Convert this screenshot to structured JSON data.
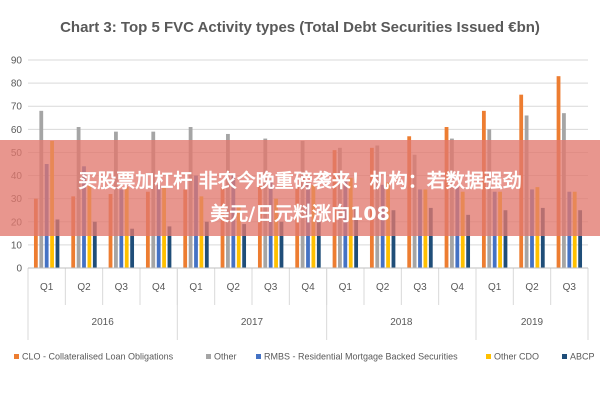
{
  "chart_data": {
    "type": "bar",
    "title": "Chart 3: Top 5 FVC Activity types (Total Debt Securities Issued €bn)",
    "xlabel": "",
    "ylabel": "",
    "ylim": [
      0,
      90
    ],
    "yticks": [
      0,
      10,
      20,
      30,
      40,
      50,
      60,
      70,
      80,
      90
    ],
    "grid": true,
    "legend_position": "bottom",
    "categories": [
      "Q1",
      "Q2",
      "Q3",
      "Q4",
      "Q1",
      "Q2",
      "Q3",
      "Q4",
      "Q1",
      "Q2",
      "Q3",
      "Q4",
      "Q1",
      "Q2",
      "Q3"
    ],
    "groups": [
      {
        "label": "2016",
        "count": 4
      },
      {
        "label": "2017",
        "count": 4
      },
      {
        "label": "2018",
        "count": 4
      },
      {
        "label": "2019",
        "count": 3
      }
    ],
    "series": [
      {
        "name": "CLO - Collateralised Loan Obligations",
        "color": "#ED7D31",
        "values": [
          30,
          31,
          32,
          33,
          34,
          35,
          36,
          35,
          51,
          52,
          57,
          61,
          68,
          75,
          83
        ]
      },
      {
        "name": "Other",
        "color": "#A5A5A5",
        "values": [
          68,
          61,
          59,
          59,
          61,
          58,
          56,
          55,
          52,
          53,
          49,
          56,
          60,
          66,
          67
        ]
      },
      {
        "name": "RMBS - Residential Mortgage Backed Securities",
        "color": "#4472C4",
        "values": [
          45,
          44,
          34,
          36,
          40,
          41,
          38,
          37,
          38,
          36,
          34,
          35,
          33,
          34,
          33
        ]
      },
      {
        "name": "Other CDO",
        "color": "#FFC000",
        "values": [
          55,
          36,
          35,
          35,
          31,
          27,
          30,
          36,
          39,
          37,
          34,
          33,
          33,
          35,
          33
        ]
      },
      {
        "name": "ABCP",
        "color": "#1F4E79",
        "values": [
          21,
          20,
          17,
          18,
          20,
          19,
          20,
          20,
          26,
          25,
          26,
          23,
          25,
          26,
          25
        ]
      }
    ]
  },
  "banner": {
    "line1": "买股票加杠杆 非农今晚重磅袭来！机构：若数据强劲",
    "line2": "美元/日元料涨向108"
  }
}
